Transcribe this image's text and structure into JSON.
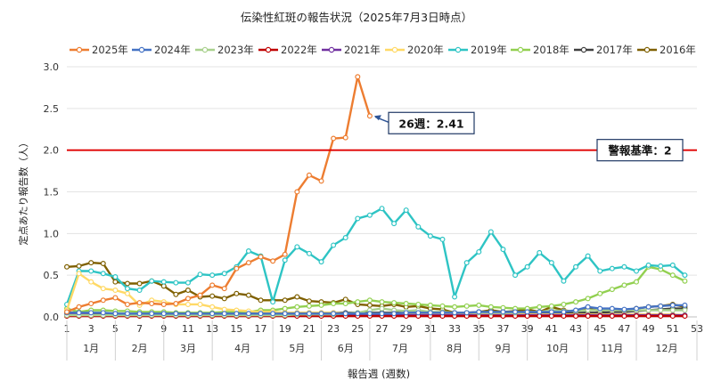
{
  "chart_data": {
    "type": "line",
    "title": "伝染性紅斑の報告状況（2025年7月3日時点）",
    "xlabel": "報告週 (週数)",
    "ylabel": "定点あたり報告数（人）",
    "ylim": [
      0,
      3.0
    ],
    "yticks": [
      "0.0",
      "0.5",
      "1.0",
      "1.5",
      "2.0",
      "2.5",
      "3.0"
    ],
    "xlim": [
      1,
      53
    ],
    "xticks": [
      "1",
      "3",
      "5",
      "7",
      "9",
      "11",
      "13",
      "15",
      "17",
      "19",
      "21",
      "23",
      "25",
      "27",
      "29",
      "31",
      "33",
      "35",
      "37",
      "39",
      "41",
      "43",
      "45",
      "47",
      "49",
      "51",
      "53"
    ],
    "months": [
      {
        "label": "1月",
        "from": 1,
        "to": 5
      },
      {
        "label": "2月",
        "from": 5,
        "to": 9
      },
      {
        "label": "3月",
        "from": 9,
        "to": 13
      },
      {
        "label": "4月",
        "from": 13,
        "to": 18
      },
      {
        "label": "5月",
        "from": 18,
        "to": 22
      },
      {
        "label": "6月",
        "from": 22,
        "to": 26
      },
      {
        "label": "7月",
        "from": 26,
        "to": 31
      },
      {
        "label": "8月",
        "from": 31,
        "to": 35
      },
      {
        "label": "9月",
        "from": 35,
        "to": 39
      },
      {
        "label": "10月",
        "from": 39,
        "to": 44
      },
      {
        "label": "11月",
        "from": 44,
        "to": 48
      },
      {
        "label": "12月",
        "from": 48,
        "to": 53
      }
    ],
    "reference_line": {
      "value": 2,
      "label": "警報基準：2",
      "color": "#e00000"
    },
    "annotation": {
      "label": "26週：2.41",
      "week": 26,
      "value": 2.41
    },
    "legend_position": "top",
    "grid": "horizontal",
    "series": [
      {
        "name": "2016年",
        "color": "#7f6000",
        "values": [
          0.6,
          0.61,
          0.65,
          0.64,
          0.42,
          0.4,
          0.4,
          0.43,
          0.37,
          0.27,
          0.32,
          0.24,
          0.25,
          0.22,
          0.28,
          0.26,
          0.2,
          0.2,
          0.2,
          0.24,
          0.19,
          0.18,
          0.17,
          0.21,
          0.15,
          0.14,
          0.13,
          0.15,
          0.12,
          0.13,
          0.1,
          0.09,
          0.05,
          0.05,
          0.06,
          0.08,
          0.06,
          0.07,
          0.09,
          0.06,
          0.12,
          0.08,
          0.06,
          0.1,
          0.07,
          0.09,
          0.08,
          0.1,
          0.12,
          0.13,
          0.15,
          0.12
        ]
      },
      {
        "name": "2017年",
        "color": "#404040",
        "values": [
          0.05,
          0.05,
          0.04,
          0.04,
          0.04,
          0.03,
          0.04,
          0.04,
          0.04,
          0.04,
          0.04,
          0.04,
          0.04,
          0.05,
          0.04,
          0.04,
          0.04,
          0.04,
          0.05,
          0.05,
          0.05,
          0.05,
          0.05,
          0.05,
          0.05,
          0.05,
          0.05,
          0.05,
          0.05,
          0.05,
          0.05,
          0.05,
          0.04,
          0.04,
          0.04,
          0.04,
          0.04,
          0.04,
          0.04,
          0.05,
          0.05,
          0.05,
          0.05,
          0.05,
          0.05,
          0.06,
          0.06,
          0.07,
          0.08,
          0.09,
          0.1,
          0.1
        ]
      },
      {
        "name": "2018年",
        "color": "#92d050",
        "values": [
          0.1,
          0.06,
          0.08,
          0.08,
          0.07,
          0.07,
          0.06,
          0.06,
          0.06,
          0.05,
          0.05,
          0.05,
          0.05,
          0.06,
          0.06,
          0.06,
          0.08,
          0.08,
          0.1,
          0.12,
          0.13,
          0.14,
          0.16,
          0.16,
          0.18,
          0.2,
          0.18,
          0.17,
          0.16,
          0.15,
          0.14,
          0.13,
          0.12,
          0.13,
          0.14,
          0.12,
          0.11,
          0.1,
          0.1,
          0.12,
          0.13,
          0.15,
          0.18,
          0.22,
          0.28,
          0.33,
          0.38,
          0.42,
          0.6,
          0.57,
          0.5,
          0.43
        ]
      },
      {
        "name": "2019年",
        "color": "#2ec4c4",
        "values": [
          0.15,
          0.55,
          0.55,
          0.52,
          0.48,
          0.34,
          0.32,
          0.43,
          0.42,
          0.41,
          0.41,
          0.51,
          0.5,
          0.52,
          0.6,
          0.79,
          0.73,
          0.18,
          0.68,
          0.84,
          0.76,
          0.66,
          0.86,
          0.95,
          1.18,
          1.22,
          1.3,
          1.12,
          1.28,
          1.08,
          0.97,
          0.93,
          0.24,
          0.65,
          0.78,
          1.02,
          0.81,
          0.5,
          0.6,
          0.77,
          0.65,
          0.43,
          0.6,
          0.73,
          0.55,
          0.58,
          0.6,
          0.55,
          0.62,
          0.61,
          0.62,
          0.5
        ]
      },
      {
        "name": "2020年",
        "color": "#ffd966",
        "values": [
          0.08,
          0.52,
          0.42,
          0.34,
          0.32,
          0.28,
          0.14,
          0.2,
          0.18,
          0.15,
          0.15,
          0.15,
          0.12,
          0.09,
          0.08,
          0.07,
          0.06,
          0.06,
          0.05,
          0.05,
          0.05,
          0.05,
          0.05,
          0.04,
          0.04,
          0.04,
          0.04,
          0.04,
          0.04,
          0.04,
          0.04,
          0.04,
          0.04,
          0.04,
          0.04,
          0.03,
          0.03,
          0.03,
          0.03,
          0.03,
          0.03,
          0.03,
          0.03,
          0.03,
          0.03,
          0.03,
          0.03,
          0.03,
          0.03,
          0.03,
          0.03,
          0.02
        ]
      },
      {
        "name": "2021年",
        "color": "#7030a0",
        "values": [
          0.03,
          0.03,
          0.02,
          0.02,
          0.02,
          0.02,
          0.02,
          0.02,
          0.02,
          0.02,
          0.02,
          0.02,
          0.02,
          0.02,
          0.02,
          0.02,
          0.02,
          0.02,
          0.02,
          0.02,
          0.02,
          0.02,
          0.02,
          0.02,
          0.02,
          0.02,
          0.02,
          0.02,
          0.02,
          0.02,
          0.02,
          0.02,
          0.02,
          0.02,
          0.02,
          0.02,
          0.02,
          0.02,
          0.02,
          0.02,
          0.02,
          0.02,
          0.02,
          0.02,
          0.02,
          0.02,
          0.02,
          0.02,
          0.02,
          0.02,
          0.02,
          0.02
        ]
      },
      {
        "name": "2022年",
        "color": "#c00000",
        "values": [
          0.01,
          0.01,
          0.01,
          0.01,
          0.01,
          0.01,
          0.01,
          0.01,
          0.01,
          0.01,
          0.01,
          0.01,
          0.01,
          0.01,
          0.01,
          0.01,
          0.01,
          0.01,
          0.01,
          0.01,
          0.01,
          0.01,
          0.01,
          0.01,
          0.01,
          0.01,
          0.01,
          0.01,
          0.01,
          0.01,
          0.01,
          0.01,
          0.01,
          0.01,
          0.01,
          0.01,
          0.01,
          0.01,
          0.01,
          0.01,
          0.01,
          0.01,
          0.01,
          0.01,
          0.01,
          0.01,
          0.01,
          0.01,
          0.01,
          0.01,
          0.01,
          0.01
        ]
      },
      {
        "name": "2023年",
        "color": "#a9d18e",
        "values": [
          0.02,
          0.02,
          0.02,
          0.02,
          0.02,
          0.02,
          0.02,
          0.02,
          0.02,
          0.02,
          0.02,
          0.02,
          0.02,
          0.02,
          0.02,
          0.02,
          0.02,
          0.02,
          0.02,
          0.03,
          0.03,
          0.03,
          0.03,
          0.04,
          0.05,
          0.08,
          0.1,
          0.08,
          0.07,
          0.08,
          0.06,
          0.06,
          0.05,
          0.05,
          0.05,
          0.05,
          0.05,
          0.05,
          0.06,
          0.06,
          0.08,
          0.07,
          0.07,
          0.08,
          0.08,
          0.08,
          0.08,
          0.08,
          0.08,
          0.08,
          0.08,
          0.08
        ]
      },
      {
        "name": "2024年",
        "color": "#4472c4",
        "values": [
          0.05,
          0.05,
          0.05,
          0.05,
          0.04,
          0.04,
          0.04,
          0.04,
          0.04,
          0.04,
          0.04,
          0.04,
          0.04,
          0.04,
          0.04,
          0.04,
          0.04,
          0.04,
          0.04,
          0.04,
          0.04,
          0.04,
          0.04,
          0.04,
          0.04,
          0.04,
          0.04,
          0.04,
          0.05,
          0.05,
          0.05,
          0.05,
          0.05,
          0.05,
          0.06,
          0.06,
          0.06,
          0.06,
          0.06,
          0.06,
          0.06,
          0.06,
          0.08,
          0.12,
          0.1,
          0.1,
          0.09,
          0.1,
          0.12,
          0.13,
          0.14,
          0.14
        ]
      },
      {
        "name": "2025年",
        "color": "#ed7d31",
        "values": [
          0.06,
          0.12,
          0.16,
          0.2,
          0.23,
          0.15,
          0.17,
          0.16,
          0.15,
          0.16,
          0.22,
          0.26,
          0.38,
          0.34,
          0.58,
          0.65,
          0.72,
          0.67,
          0.75,
          1.5,
          1.7,
          1.63,
          2.14,
          2.15,
          2.88,
          2.41
        ]
      }
    ]
  }
}
